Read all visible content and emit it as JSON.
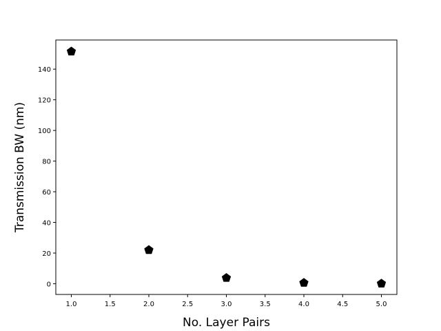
{
  "chart_data": {
    "type": "scatter",
    "title": "",
    "xlabel": "No. Layer Pairs",
    "ylabel": "Transmission BW (nm)",
    "xlim": [
      0.8,
      5.2
    ],
    "ylim": [
      -7,
      159
    ],
    "xticks": [
      1.0,
      1.5,
      2.0,
      2.5,
      3.0,
      3.5,
      4.0,
      4.5,
      5.0
    ],
    "xtick_labels": [
      "1.0",
      "1.5",
      "2.0",
      "2.5",
      "3.0",
      "3.5",
      "4.0",
      "4.5",
      "5.0"
    ],
    "yticks": [
      0,
      20,
      40,
      60,
      80,
      100,
      120,
      140
    ],
    "ytick_labels": [
      "0",
      "20",
      "40",
      "60",
      "80",
      "100",
      "120",
      "140"
    ],
    "grid": false,
    "marker": "pentagon",
    "marker_color": "#000000",
    "series": [
      {
        "x": [
          1,
          2,
          3,
          4,
          5
        ],
        "y": [
          151.5,
          22,
          3.8,
          0.6,
          0.1
        ]
      }
    ]
  }
}
